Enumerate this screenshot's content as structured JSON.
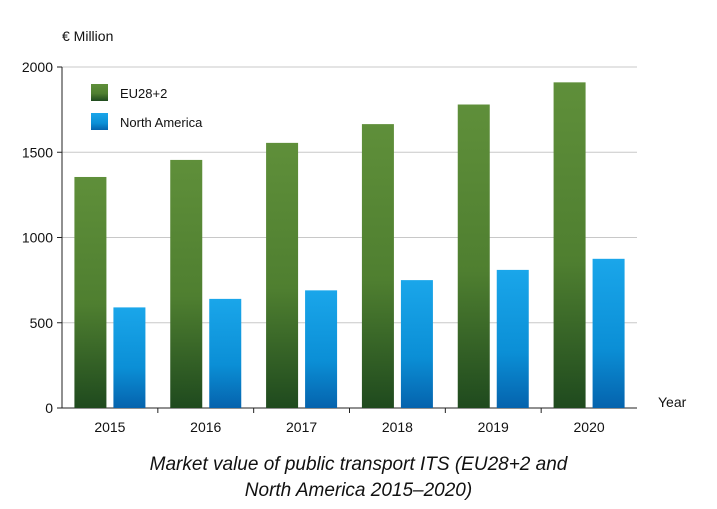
{
  "chart_data": {
    "type": "bar",
    "title": "",
    "ylabel": "€ Million",
    "xlabel": "Year",
    "categories": [
      "2015",
      "2016",
      "2017",
      "2018",
      "2019",
      "2020"
    ],
    "series": [
      {
        "name": "EU28+2",
        "values": [
          1355,
          1455,
          1555,
          1665,
          1780,
          1910
        ],
        "color": "#5a8a3a"
      },
      {
        "name": "North America",
        "values": [
          590,
          640,
          690,
          750,
          810,
          875
        ],
        "color": "#1aa0e6"
      }
    ],
    "ylim": [
      0,
      2000
    ],
    "yticks": [
      0,
      500,
      1000,
      1500,
      2000
    ],
    "grid": true,
    "legend": "top-left"
  },
  "caption": {
    "line1": "Market value of public transport ITS (EU28+2 and",
    "line2": "North America 2015–2020)"
  }
}
